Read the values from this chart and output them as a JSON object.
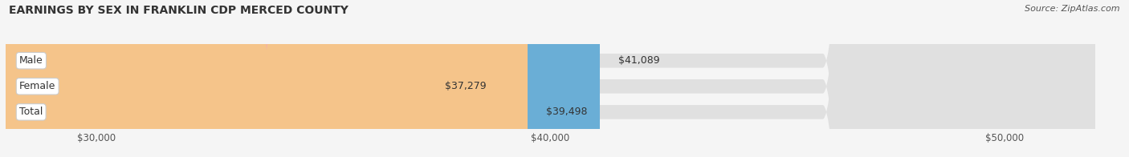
{
  "title": "EARNINGS BY SEX IN FRANKLIN CDP MERCED COUNTY",
  "source": "Source: ZipAtlas.com",
  "categories": [
    "Male",
    "Female",
    "Total"
  ],
  "values": [
    41089,
    37279,
    39498
  ],
  "bar_colors": [
    "#6aaed6",
    "#f4a8b8",
    "#f5c48a"
  ],
  "xlim_min": 28000,
  "xlim_max": 52000,
  "xticks": [
    30000,
    40000,
    50000
  ],
  "xtick_labels": [
    "$30,000",
    "$40,000",
    "$50,000"
  ],
  "title_fontsize": 10,
  "source_fontsize": 8,
  "bar_label_fontsize": 9,
  "category_fontsize": 9,
  "bg_color": "#f5f5f5",
  "bar_bg_color": "#e0e0e0",
  "bar_height": 0.55,
  "value_labels": [
    "$41,089",
    "$37,279",
    "$39,498"
  ]
}
